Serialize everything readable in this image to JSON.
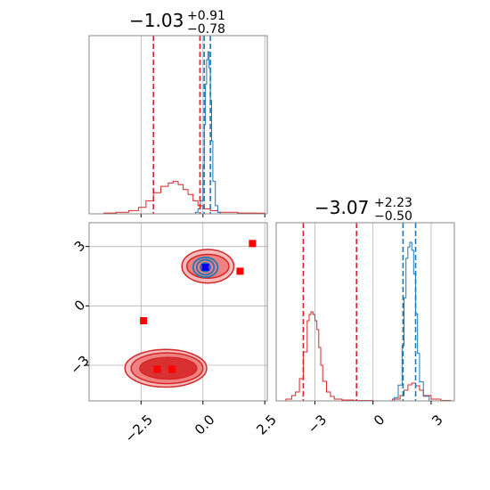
{
  "chart_data": {
    "type": "corner",
    "colors": {
      "red": "#d62728",
      "blue": "#1f77b4",
      "red_fill": "#f08080",
      "grid": "#b0b0b0",
      "truth_marker": "#0000ff",
      "point_marker": "#ff0000"
    },
    "grid": true,
    "panels": [
      {
        "id": "hist_x",
        "type": "histogram",
        "title": {
          "main": "−1.03",
          "sup": "+0.91",
          "sub": "−0.78"
        },
        "xlim": [
          -4.6,
          2.6
        ],
        "x_gridlines": [
          -2.5,
          0.0,
          2.5
        ],
        "red_quantile_lines": [
          -2.0,
          -0.12
        ],
        "blue_quantile_lines": [
          0.05,
          0.3
        ],
        "blue_hist": {
          "x": [
            -0.4,
            -0.3,
            -0.2,
            -0.1,
            0.0,
            0.05,
            0.1,
            0.15,
            0.2,
            0.25,
            0.3,
            0.35,
            0.4,
            0.5,
            0.6,
            0.7
          ],
          "y": [
            0,
            0.01,
            0.03,
            0.08,
            0.3,
            0.55,
            0.8,
            0.95,
            1.0,
            0.9,
            0.7,
            0.45,
            0.2,
            0.05,
            0.01,
            0
          ]
        },
        "red_hist": {
          "x": [
            -4.5,
            -4.0,
            -3.5,
            -3.0,
            -2.6,
            -2.3,
            -2.0,
            -1.7,
            -1.4,
            -1.2,
            -1.0,
            -0.8,
            -0.6,
            -0.4,
            -0.2,
            0.0,
            0.3,
            0.6,
            1.0,
            1.4,
            1.8,
            2.2,
            2.5
          ],
          "y": [
            0,
            0.005,
            0.01,
            0.02,
            0.04,
            0.08,
            0.13,
            0.17,
            0.19,
            0.2,
            0.18,
            0.15,
            0.12,
            0.08,
            0.05,
            0.03,
            0.02,
            0.01,
            0.01,
            0.005,
            0.005,
            0.004,
            0
          ]
        }
      },
      {
        "id": "hist_y",
        "type": "histogram",
        "title": {
          "main": "−3.07",
          "sup": "+2.23",
          "sub": "−0.50"
        },
        "xlim": [
          -5.0,
          4.2
        ],
        "x_gridlines": [
          -3,
          0,
          3
        ],
        "x_ticks": [
          -3,
          0,
          3
        ],
        "x_tick_labels": [
          "−3",
          "0",
          "3"
        ],
        "red_quantile_lines": [
          -3.6,
          -0.85
        ],
        "blue_quantile_lines": [
          1.55,
          2.2
        ],
        "red_hist": {
          "x": [
            -4.8,
            -4.5,
            -4.2,
            -4.0,
            -3.8,
            -3.6,
            -3.4,
            -3.3,
            -3.2,
            -3.1,
            -3.0,
            -2.9,
            -2.8,
            -2.7,
            -2.6,
            -2.4,
            -2.2,
            -2.0,
            -1.6,
            -1.0,
            0.0,
            1.0,
            1.4,
            1.6,
            1.8,
            2.0,
            2.2,
            2.4,
            2.6,
            3.0,
            3.5,
            4.0
          ],
          "y": [
            0,
            0.02,
            0.06,
            0.1,
            0.25,
            0.55,
            0.9,
            0.97,
            1.0,
            0.97,
            0.9,
            0.8,
            0.6,
            0.4,
            0.22,
            0.1,
            0.05,
            0.02,
            0.01,
            0.005,
            0,
            0.02,
            0.06,
            0.12,
            0.18,
            0.2,
            0.17,
            0.12,
            0.06,
            0.02,
            0.005,
            0
          ]
        },
        "blue_hist": {
          "x": [
            0.8,
            1.1,
            1.3,
            1.5,
            1.6,
            1.7,
            1.8,
            1.9,
            2.0,
            2.1,
            2.2,
            2.3,
            2.4,
            2.6,
            2.9
          ],
          "y": [
            0,
            0.02,
            0.1,
            0.35,
            0.65,
            0.9,
            0.97,
            1.0,
            0.95,
            0.8,
            0.55,
            0.3,
            0.12,
            0.03,
            0
          ]
        }
      },
      {
        "id": "joint",
        "type": "2d-contour",
        "xlim": [
          -4.6,
          2.6
        ],
        "ylim": [
          -4.8,
          4.2
        ],
        "x_ticks": [
          -2.5,
          0.0,
          2.5
        ],
        "x_tick_labels": [
          "−2.5",
          "0.0",
          "2.5"
        ],
        "y_ticks": [
          -3,
          0,
          3
        ],
        "y_tick_labels": [
          "−3",
          "0",
          "3"
        ],
        "red_points": [
          {
            "x": 2.0,
            "y": 3.15
          },
          {
            "x": -2.4,
            "y": -0.75
          },
          {
            "x": -1.85,
            "y": -3.2
          },
          {
            "x": -1.25,
            "y": -3.2
          },
          {
            "x": 1.5,
            "y": 1.75
          },
          {
            "x": 0.1,
            "y": 1.95
          }
        ],
        "blue_points": [
          {
            "x": 0.1,
            "y": 1.95
          }
        ],
        "red_contours": [
          {
            "cx": -1.5,
            "cy": -3.15,
            "rx": 1.65,
            "ry": 0.95
          },
          {
            "cx": -1.45,
            "cy": -3.15,
            "rx": 1.45,
            "ry": 0.78
          },
          {
            "cx": -1.4,
            "cy": -3.15,
            "rx": 1.15,
            "ry": 0.55
          },
          {
            "cx": 0.2,
            "cy": 2.0,
            "rx": 1.05,
            "ry": 0.85
          },
          {
            "cx": 0.2,
            "cy": 2.0,
            "rx": 0.85,
            "ry": 0.6
          }
        ],
        "blue_contours": [
          {
            "cx": 0.1,
            "cy": 1.95,
            "rx": 0.5,
            "ry": 0.5
          },
          {
            "cx": 0.1,
            "cy": 1.95,
            "rx": 0.35,
            "ry": 0.38
          },
          {
            "cx": 0.1,
            "cy": 1.95,
            "rx": 0.2,
            "ry": 0.22
          }
        ]
      }
    ]
  }
}
